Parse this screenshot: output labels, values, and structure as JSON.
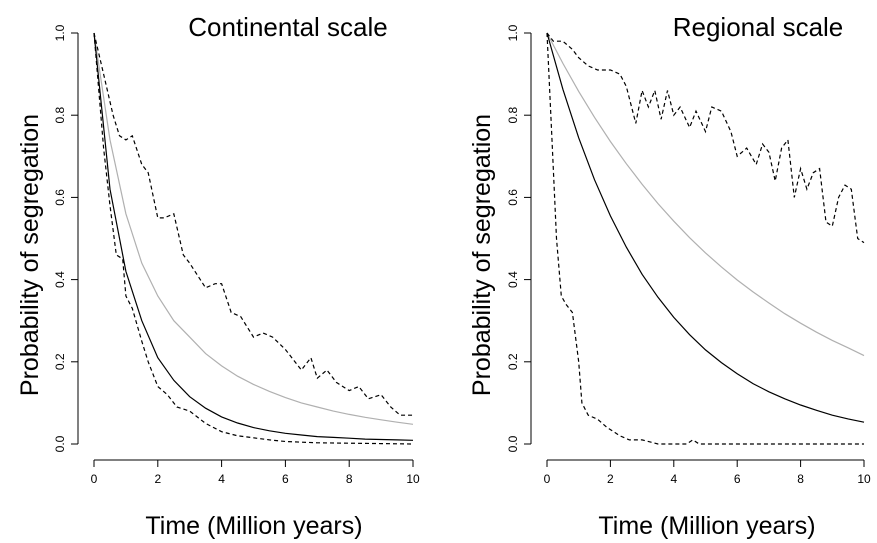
{
  "chart_data": [
    {
      "type": "line",
      "title": "Continental scale",
      "xlabel": "Time (Million years)",
      "ylabel": "Probability of segregation",
      "xlim": [
        0,
        10
      ],
      "ylim": [
        0,
        1
      ],
      "xticks": [
        "0",
        "2",
        "4",
        "6",
        "8",
        "10"
      ],
      "yticks": [
        "0.0",
        "0.2",
        "0.4",
        "0.6",
        "0.8",
        "1.0"
      ],
      "grid": false,
      "series": [
        {
          "style": "solid",
          "color": "#b0b0b0",
          "x": [
            0,
            0.5,
            1,
            1.5,
            2,
            2.5,
            3,
            3.5,
            4,
            4.5,
            5,
            5.5,
            6,
            6.5,
            7,
            7.5,
            8,
            8.5,
            9,
            9.5,
            10
          ],
          "y": [
            1.0,
            0.74,
            0.56,
            0.44,
            0.36,
            0.3,
            0.26,
            0.22,
            0.19,
            0.165,
            0.145,
            0.128,
            0.113,
            0.1,
            0.09,
            0.08,
            0.072,
            0.065,
            0.059,
            0.053,
            0.048
          ]
        },
        {
          "style": "solid",
          "color": "#000000",
          "x": [
            0,
            0.5,
            1,
            1.5,
            2,
            2.5,
            3,
            3.5,
            4,
            4.5,
            5,
            5.5,
            6,
            6.5,
            7,
            7.5,
            8,
            8.5,
            9,
            9.5,
            10
          ],
          "y": [
            1.0,
            0.62,
            0.42,
            0.3,
            0.21,
            0.155,
            0.115,
            0.087,
            0.066,
            0.051,
            0.04,
            0.032,
            0.026,
            0.022,
            0.018,
            0.016,
            0.014,
            0.012,
            0.011,
            0.01,
            0.009
          ]
        },
        {
          "style": "dashed",
          "color": "#000000",
          "x": [
            0,
            0.3,
            0.6,
            0.8,
            1.0,
            1.2,
            1.5,
            1.7,
            2.0,
            2.2,
            2.5,
            2.8,
            3.0,
            3.5,
            3.8,
            4.0,
            4.3,
            4.6,
            5.0,
            5.3,
            5.6,
            6.0,
            6.5,
            6.8,
            7.0,
            7.3,
            7.6,
            8.0,
            8.3,
            8.6,
            9.0,
            9.3,
            9.6,
            10.0
          ],
          "y": [
            1.0,
            0.9,
            0.8,
            0.75,
            0.74,
            0.75,
            0.68,
            0.66,
            0.55,
            0.55,
            0.56,
            0.46,
            0.44,
            0.38,
            0.39,
            0.39,
            0.32,
            0.31,
            0.26,
            0.27,
            0.26,
            0.23,
            0.18,
            0.21,
            0.16,
            0.18,
            0.15,
            0.13,
            0.14,
            0.11,
            0.12,
            0.09,
            0.07,
            0.07
          ]
        },
        {
          "style": "dashed",
          "color": "#000000",
          "x": [
            0,
            0.3,
            0.5,
            0.7,
            0.9,
            1.0,
            1.2,
            1.5,
            1.7,
            2.0,
            2.3,
            2.6,
            3.0,
            3.5,
            4.0,
            4.5,
            5.0,
            5.5,
            6.0,
            7.0,
            8.0,
            9.0,
            10.0
          ],
          "y": [
            1.0,
            0.72,
            0.58,
            0.46,
            0.45,
            0.36,
            0.33,
            0.25,
            0.2,
            0.14,
            0.12,
            0.09,
            0.08,
            0.05,
            0.03,
            0.02,
            0.015,
            0.01,
            0.006,
            0.003,
            0.002,
            0.001,
            0.0
          ]
        }
      ]
    },
    {
      "type": "line",
      "title": "Regional scale",
      "xlabel": "Time (Million years)",
      "ylabel": "Probability of segregation",
      "xlim": [
        0,
        10
      ],
      "ylim": [
        0,
        1
      ],
      "xticks": [
        "0",
        "2",
        "4",
        "6",
        "8",
        "10"
      ],
      "yticks": [
        "0.0",
        "0.2",
        "0.4",
        "0.6",
        "0.8",
        "1.0"
      ],
      "grid": false,
      "series": [
        {
          "style": "solid",
          "color": "#b0b0b0",
          "x": [
            0,
            0.5,
            1,
            1.5,
            2,
            2.5,
            3,
            3.5,
            4,
            4.5,
            5,
            5.5,
            6,
            6.5,
            7,
            7.5,
            8,
            8.5,
            9,
            9.5,
            10
          ],
          "y": [
            1.0,
            0.926,
            0.858,
            0.795,
            0.736,
            0.682,
            0.632,
            0.585,
            0.542,
            0.502,
            0.465,
            0.431,
            0.399,
            0.37,
            0.343,
            0.317,
            0.294,
            0.272,
            0.252,
            0.234,
            0.215
          ]
        },
        {
          "style": "solid",
          "color": "#000000",
          "x": [
            0,
            0.5,
            1,
            1.5,
            2,
            2.5,
            3,
            3.5,
            4,
            4.5,
            5,
            5.5,
            6,
            6.5,
            7,
            7.5,
            8,
            8.5,
            9,
            9.5,
            10
          ],
          "y": [
            1.0,
            0.863,
            0.745,
            0.643,
            0.555,
            0.479,
            0.413,
            0.357,
            0.308,
            0.266,
            0.229,
            0.198,
            0.171,
            0.147,
            0.127,
            0.11,
            0.095,
            0.082,
            0.07,
            0.061,
            0.053
          ]
        },
        {
          "style": "dashed",
          "color": "#000000",
          "x": [
            0,
            0.2,
            0.5,
            0.8,
            1.0,
            1.3,
            1.6,
            2.0,
            2.3,
            2.5,
            2.8,
            3.0,
            3.2,
            3.4,
            3.6,
            3.8,
            4.0,
            4.2,
            4.5,
            4.7,
            5.0,
            5.2,
            5.5,
            5.8,
            6.0,
            6.3,
            6.6,
            6.8,
            7.0,
            7.2,
            7.4,
            7.6,
            7.8,
            8.0,
            8.2,
            8.4,
            8.6,
            8.8,
            9.0,
            9.2,
            9.4,
            9.6,
            9.8,
            10.0
          ],
          "y": [
            1.0,
            0.98,
            0.98,
            0.96,
            0.94,
            0.92,
            0.91,
            0.91,
            0.9,
            0.87,
            0.78,
            0.86,
            0.82,
            0.86,
            0.79,
            0.86,
            0.8,
            0.82,
            0.77,
            0.81,
            0.76,
            0.82,
            0.81,
            0.76,
            0.7,
            0.72,
            0.68,
            0.73,
            0.71,
            0.64,
            0.72,
            0.74,
            0.6,
            0.67,
            0.62,
            0.66,
            0.67,
            0.54,
            0.53,
            0.6,
            0.63,
            0.62,
            0.5,
            0.49
          ]
        },
        {
          "style": "dashed",
          "color": "#000000",
          "x": [
            0,
            0.15,
            0.3,
            0.45,
            0.6,
            0.8,
            1.0,
            1.1,
            1.3,
            1.6,
            1.9,
            2.1,
            2.3,
            2.6,
            3.0,
            3.5,
            4.0,
            4.4,
            4.6,
            4.8,
            5.2,
            6.0,
            10.0
          ],
          "y": [
            1.0,
            0.75,
            0.5,
            0.36,
            0.34,
            0.32,
            0.2,
            0.1,
            0.07,
            0.06,
            0.04,
            0.03,
            0.02,
            0.01,
            0.01,
            0.0,
            0.0,
            0.0,
            0.01,
            0.0,
            0.0,
            0.0,
            0.0
          ]
        }
      ]
    }
  ]
}
